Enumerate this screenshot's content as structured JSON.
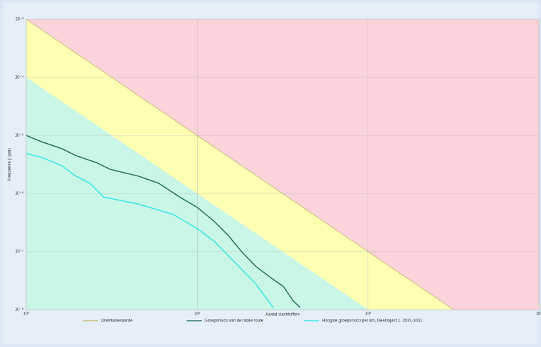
{
  "chart_data": {
    "type": "line",
    "xlabel": "Aantal slachtoffers",
    "ylabel": "Frequentie (/ jaar)",
    "log_x": true,
    "log_y": true,
    "grid": true,
    "xlim": [
      1,
      1000
    ],
    "ylim": [
      1e-08,
      0.001
    ],
    "xticks": [
      {
        "value": 1,
        "label": "10⁰"
      },
      {
        "value": 10,
        "label": "10¹"
      },
      {
        "value": 100,
        "label": "10²"
      },
      {
        "value": 1000,
        "label": "10³"
      }
    ],
    "yticks": [
      {
        "value": 1e-08,
        "label": "10⁻⁸"
      },
      {
        "value": 1e-07,
        "label": "10⁻⁷"
      },
      {
        "value": 1e-06,
        "label": "10⁻⁶"
      },
      {
        "value": 1e-05,
        "label": "10⁻⁵"
      },
      {
        "value": 0.0001,
        "label": "10⁻⁴"
      },
      {
        "value": 0.001,
        "label": "10⁻³"
      }
    ],
    "zones": {
      "upper_color": "#fbd3da",
      "middle_color": "#ffffb4",
      "lower_color": "#c9f6e6",
      "lower_boundary": {
        "x": [
          1,
          100
        ],
        "values": [
          0.0001,
          1e-08
        ]
      }
    },
    "legend": "bottom",
    "series": [
      {
        "name": "Oriëntatiewaarde",
        "color": "#c8bd7a",
        "x": [
          1,
          316.2
        ],
        "values": [
          0.001,
          1e-08
        ]
      },
      {
        "name": "Groepsrisico van de totale route",
        "color": "#2e7466",
        "x": [
          1,
          1.23,
          1.62,
          1.95,
          2.58,
          3.11,
          4.52,
          5.97,
          7.9,
          10,
          12.6,
          15.2,
          18.3,
          22,
          26.5,
          32,
          36.6,
          40
        ],
        "values": [
          1e-05,
          7.8e-06,
          5.9e-06,
          4.5e-06,
          3.4e-06,
          2.6e-06,
          2e-06,
          1.5e-06,
          8.7e-07,
          5.8e-07,
          3.3e-07,
          1.9e-07,
          9.8e-08,
          5.6e-08,
          3.7e-08,
          2.5e-08,
          1.4e-08,
          1.1e-08
        ]
      },
      {
        "name": "Hoogste groepsrisico per km, Deeltraject 1, 2021-2031",
        "color": "#3ee6e6",
        "x": [
          1,
          1.23,
          1.62,
          1.95,
          2.36,
          2.84,
          4.52,
          7.2,
          10,
          12.6,
          15.2,
          18.3,
          22,
          25.3,
          27.8
        ],
        "values": [
          4.9e-06,
          4.2e-06,
          3e-06,
          2e-06,
          1.5e-06,
          8.7e-07,
          6.6e-07,
          4.4e-07,
          2.5e-07,
          1.5e-07,
          8.5e-08,
          4.9e-08,
          2.8e-08,
          1.6e-08,
          1.1e-08
        ]
      }
    ]
  }
}
